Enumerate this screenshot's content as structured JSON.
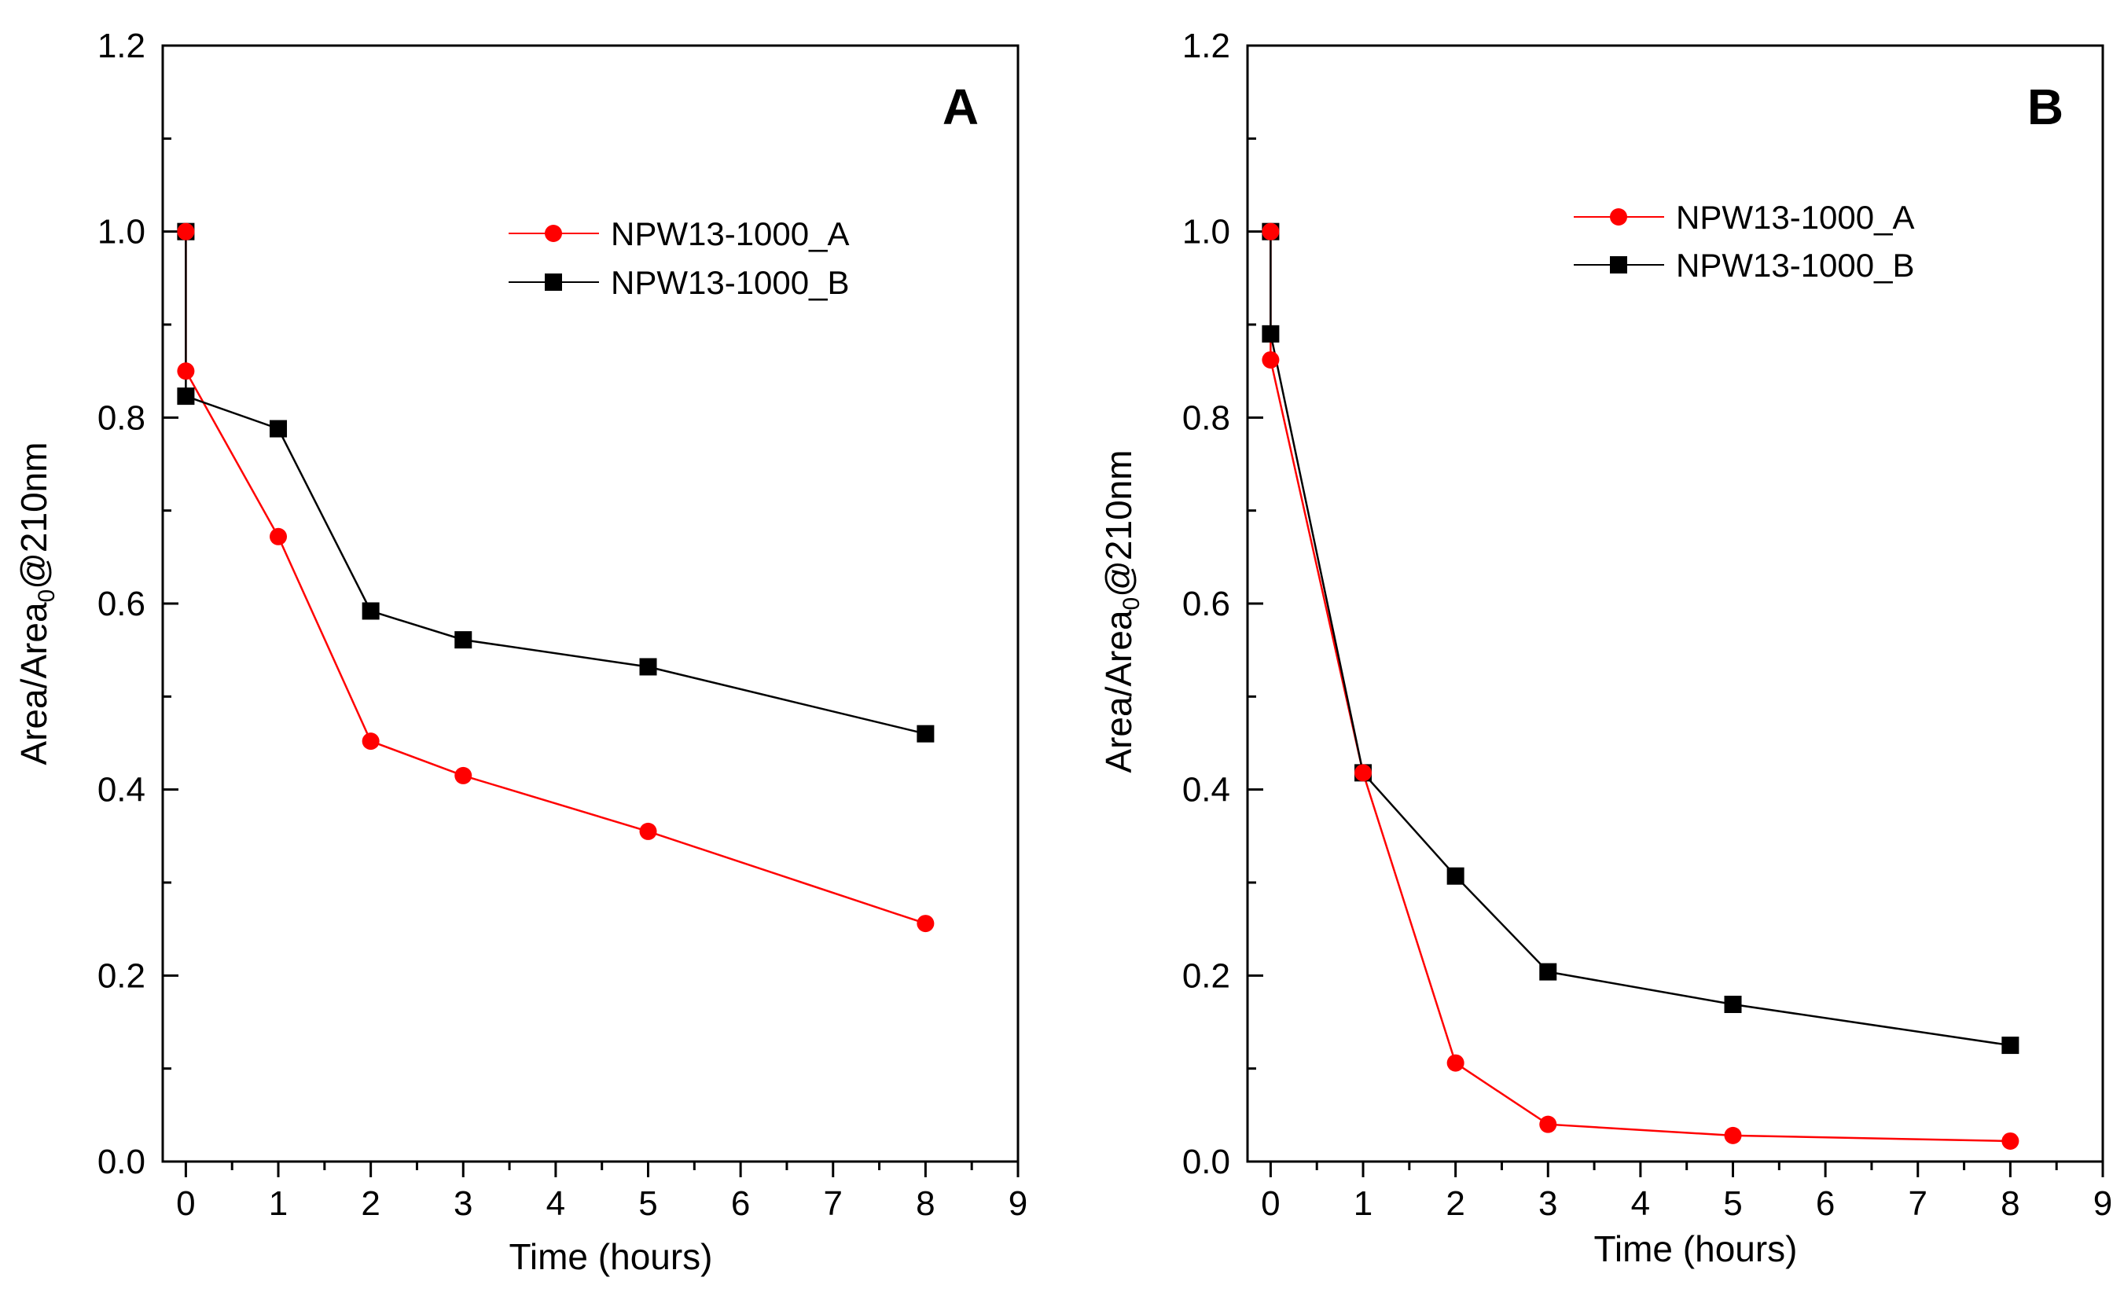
{
  "chart_data": [
    {
      "type": "line",
      "panel_label": "A",
      "xlabel": "Time (hours)",
      "ylabel_main": "Area/Area",
      "ylabel_sub": "0",
      "ylabel_tail": "@210nm",
      "xlim": [
        -0.25,
        9
      ],
      "ylim": [
        0,
        1.2
      ],
      "xticks": [
        "0",
        "1",
        "2",
        "3",
        "4",
        "5",
        "6",
        "7",
        "8",
        "9"
      ],
      "yticks": [
        "0.0",
        "0.2",
        "0.4",
        "0.6",
        "0.8",
        "1.0",
        "1.2"
      ],
      "legend_position": "top-right",
      "series": [
        {
          "name": "NPW13-1000_A",
          "color": "#ff0000",
          "marker": "circle",
          "x": [
            0,
            0,
            1,
            2,
            3,
            5,
            8
          ],
          "y": [
            1.0,
            0.85,
            0.672,
            0.452,
            0.415,
            0.355,
            0.256
          ]
        },
        {
          "name": "NPW13-1000_B",
          "color": "#000000",
          "marker": "square",
          "x": [
            0,
            0,
            1,
            2,
            3,
            5,
            8
          ],
          "y": [
            1.0,
            0.823,
            0.788,
            0.592,
            0.561,
            0.532,
            0.46
          ]
        }
      ]
    },
    {
      "type": "line",
      "panel_label": "B",
      "xlabel": "Time (hours)",
      "ylabel_main": "Area/Area",
      "ylabel_sub": "0",
      "ylabel_tail": "@210nm",
      "xlim": [
        -0.25,
        9
      ],
      "ylim": [
        0,
        1.2
      ],
      "xticks": [
        "0",
        "1",
        "2",
        "3",
        "4",
        "5",
        "6",
        "7",
        "8",
        "9"
      ],
      "yticks": [
        "0.0",
        "0.2",
        "0.4",
        "0.6",
        "0.8",
        "1.0",
        "1.2"
      ],
      "legend_position": "top-right",
      "series": [
        {
          "name": "NPW13-1000_A",
          "color": "#ff0000",
          "marker": "circle",
          "x": [
            0,
            0,
            1,
            2,
            3,
            5,
            8
          ],
          "y": [
            1.0,
            0.862,
            0.418,
            0.106,
            0.04,
            0.028,
            0.022
          ]
        },
        {
          "name": "NPW13-1000_B",
          "color": "#000000",
          "marker": "square",
          "x": [
            0,
            0,
            1,
            2,
            3,
            5,
            8
          ],
          "y": [
            1.0,
            0.89,
            0.418,
            0.307,
            0.204,
            0.169,
            0.125
          ]
        }
      ]
    }
  ]
}
